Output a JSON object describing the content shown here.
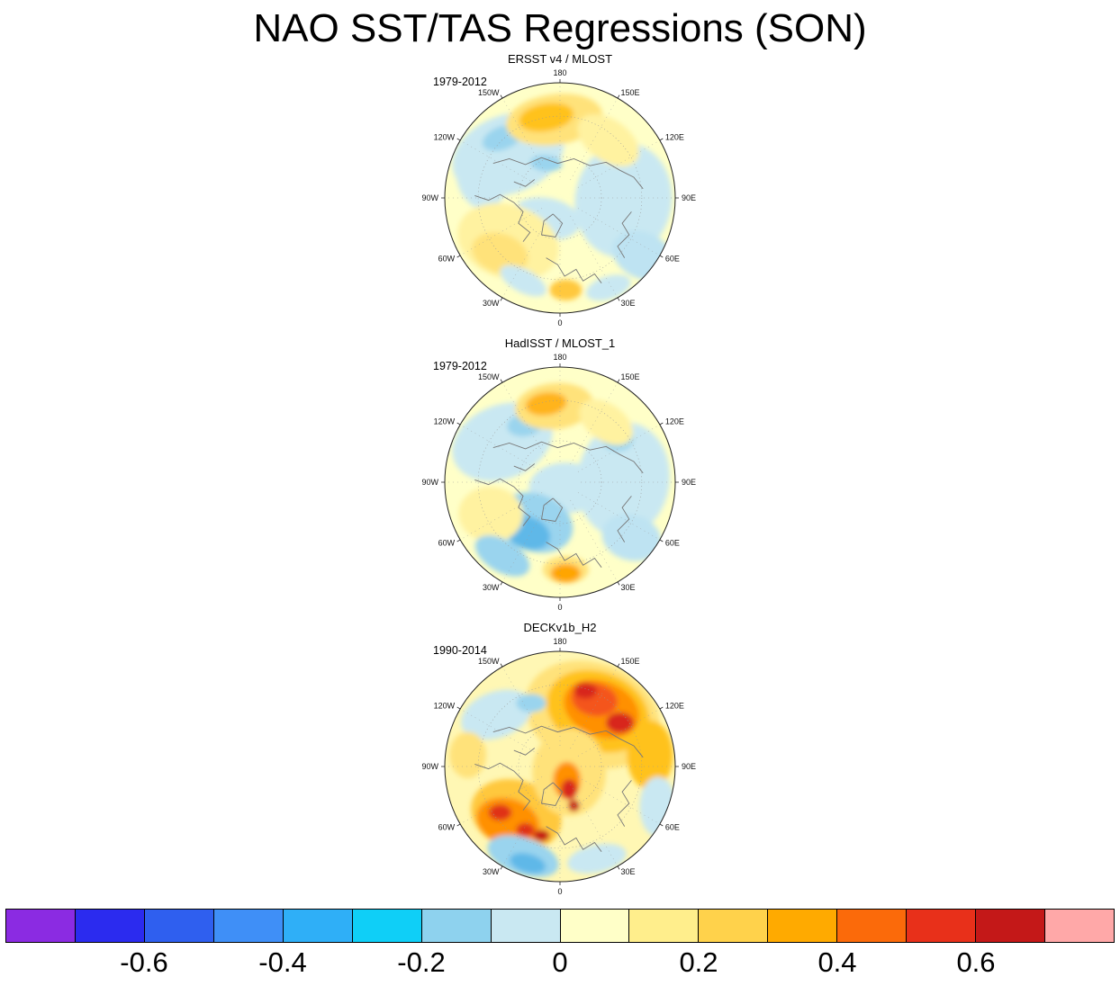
{
  "title": "NAO SST/TAS Regressions (SON)",
  "chart_data": {
    "type": "heatmap",
    "projection": "north_polar_stereographic",
    "title": "NAO SST/TAS Regressions (SON)",
    "lon_labels": [
      "180",
      "150E",
      "120E",
      "90E",
      "60E",
      "30E",
      "0",
      "30W",
      "60W",
      "90W",
      "120W",
      "150W"
    ],
    "panels": [
      {
        "title": "ERSST v4 / MLOST",
        "period": "1979-2012",
        "base": "#FFFFC8",
        "blobs": [
          [
            -0.45,
            -0.38,
            0.5,
            0.34,
            -20,
            "#C9E8F2"
          ],
          [
            -0.68,
            -0.2,
            0.22,
            0.3,
            -10,
            "#C9E8F2"
          ],
          [
            -0.5,
            -0.52,
            0.18,
            0.1,
            -20,
            "#9AD4EE"
          ],
          [
            -0.12,
            -0.3,
            0.14,
            0.07,
            5,
            "#9AD4EE"
          ],
          [
            0.55,
            0.02,
            0.42,
            0.5,
            8,
            "#C9E8F2"
          ],
          [
            0.72,
            0.5,
            0.28,
            0.2,
            25,
            "#BEE3F2"
          ],
          [
            -0.12,
            0.18,
            0.3,
            0.18,
            10,
            "#C9E8F2"
          ],
          [
            -0.45,
            0.38,
            0.45,
            0.32,
            18,
            "#FFF2A0"
          ],
          [
            -0.52,
            0.48,
            0.25,
            0.17,
            18,
            "#FFE27A"
          ],
          [
            -0.05,
            -0.68,
            0.42,
            0.22,
            -8,
            "#FFE27A"
          ],
          [
            -0.12,
            -0.7,
            0.24,
            0.12,
            -10,
            "#FFC21E"
          ],
          [
            0.42,
            -0.5,
            0.3,
            0.18,
            35,
            "#FFF2A0"
          ],
          [
            0.05,
            0.8,
            0.14,
            0.09,
            0,
            "#FFC83C"
          ],
          [
            -0.32,
            0.72,
            0.22,
            0.1,
            28,
            "#C9E8F2"
          ],
          [
            0.42,
            0.78,
            0.2,
            0.1,
            -18,
            "#C9E8F2"
          ]
        ]
      },
      {
        "title": "HadISST / MLOST_1",
        "period": "1979-2012",
        "base": "#FFFFC8",
        "blobs": [
          [
            -0.5,
            -0.35,
            0.45,
            0.32,
            -22,
            "#C9E8F2"
          ],
          [
            -0.3,
            -0.5,
            0.16,
            0.1,
            -10,
            "#9AD4EE"
          ],
          [
            0.55,
            -0.02,
            0.4,
            0.5,
            8,
            "#C9E8F2"
          ],
          [
            0.5,
            -0.38,
            0.14,
            0.11,
            0,
            "#9AD4EE"
          ],
          [
            0.05,
            0.05,
            0.32,
            0.22,
            0,
            "#C9E8F2"
          ],
          [
            -0.22,
            0.35,
            0.34,
            0.25,
            20,
            "#9AD4EE"
          ],
          [
            -0.28,
            0.44,
            0.2,
            0.14,
            20,
            "#5FB8E8"
          ],
          [
            -0.6,
            0.28,
            0.28,
            0.24,
            5,
            "#FFF2A0"
          ],
          [
            -0.05,
            -0.66,
            0.34,
            0.2,
            -6,
            "#FFE27A"
          ],
          [
            -0.12,
            -0.68,
            0.18,
            0.1,
            -8,
            "#FFB41E"
          ],
          [
            0.4,
            -0.52,
            0.26,
            0.16,
            35,
            "#FFF2A0"
          ],
          [
            0.05,
            0.76,
            0.2,
            0.12,
            0,
            "#FFE27A"
          ],
          [
            0.05,
            0.79,
            0.13,
            0.08,
            0,
            "#FFA500"
          ],
          [
            0.62,
            0.48,
            0.26,
            0.2,
            15,
            "#BEE3F2"
          ],
          [
            -0.5,
            0.64,
            0.26,
            0.14,
            30,
            "#9AD4EE"
          ]
        ]
      },
      {
        "title": "DECKv1b_H2",
        "period": "1990-2014",
        "base": "#FFF7B4",
        "blobs": [
          [
            0.28,
            -0.45,
            0.6,
            0.45,
            20,
            "#FFE27A"
          ],
          [
            0.33,
            -0.48,
            0.46,
            0.34,
            22,
            "#FFC21E"
          ],
          [
            0.36,
            -0.5,
            0.34,
            0.24,
            22,
            "#FF9000"
          ],
          [
            0.3,
            -0.58,
            0.2,
            0.14,
            10,
            "#F4551A"
          ],
          [
            0.52,
            -0.38,
            0.12,
            0.09,
            0,
            "#D8251A"
          ],
          [
            0.22,
            -0.66,
            0.1,
            0.07,
            0,
            "#D8251A"
          ],
          [
            0.78,
            -0.1,
            0.2,
            0.3,
            0,
            "#FFC21E"
          ],
          [
            -0.55,
            -0.45,
            0.32,
            0.2,
            -20,
            "#C9E8F2"
          ],
          [
            -0.25,
            -0.55,
            0.13,
            0.08,
            0,
            "#9AD4EE"
          ],
          [
            -0.8,
            -0.1,
            0.16,
            0.2,
            0,
            "#FFE27A"
          ],
          [
            -0.38,
            0.42,
            0.4,
            0.3,
            18,
            "#FFC83C"
          ],
          [
            -0.45,
            0.48,
            0.28,
            0.2,
            18,
            "#FF9000"
          ],
          [
            -0.52,
            0.4,
            0.1,
            0.07,
            0,
            "#E03018"
          ],
          [
            -0.3,
            0.55,
            0.08,
            0.06,
            0,
            "#E03018"
          ],
          [
            -0.16,
            0.6,
            0.07,
            0.05,
            0,
            "#C41818"
          ],
          [
            0.08,
            0.05,
            0.32,
            0.38,
            0,
            "#FFE27A"
          ],
          [
            0.06,
            0.12,
            0.12,
            0.16,
            0,
            "#FF9000"
          ],
          [
            0.08,
            0.2,
            0.07,
            0.09,
            0,
            "#D8251A"
          ],
          [
            0.12,
            0.34,
            0.05,
            0.05,
            0,
            "#C41818"
          ],
          [
            -0.32,
            0.78,
            0.32,
            0.16,
            18,
            "#9AD4EE"
          ],
          [
            -0.28,
            0.84,
            0.16,
            0.08,
            15,
            "#5FB8E8"
          ],
          [
            0.32,
            0.8,
            0.26,
            0.12,
            -12,
            "#C9E8F2"
          ],
          [
            0.85,
            0.35,
            0.16,
            0.26,
            0,
            "#C9E8F2"
          ]
        ]
      }
    ],
    "colorbar": {
      "range": [
        -0.8,
        0.8
      ],
      "tick_values": [
        -0.6,
        -0.4,
        -0.2,
        0,
        0.2,
        0.4,
        0.6
      ],
      "tick_labels": [
        "-0.6",
        "-0.4",
        "-0.2",
        "0",
        "0.2",
        "0.4",
        "0.6"
      ],
      "colors": [
        "#8B2BE2",
        "#2B2BEF",
        "#2F5FEF",
        "#3F8FF7",
        "#2FAFF7",
        "#0FCFF7",
        "#8ED2EE",
        "#C9E8F2",
        "#FFFFC8",
        "#FFEE8C",
        "#FFD24B",
        "#FFAA00",
        "#FB6A0A",
        "#E8301A",
        "#C41818",
        "#FFA8A8"
      ]
    }
  }
}
